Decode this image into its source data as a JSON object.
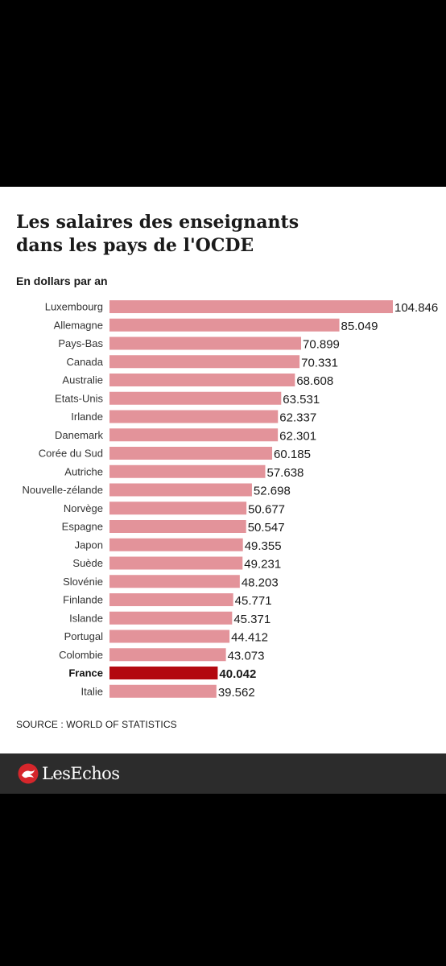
{
  "header": {
    "title_line1": "Les salaires des enseignants",
    "title_line2": "dans les pays de l'OCDE",
    "subtitle": "En dollars par an"
  },
  "footer": {
    "source": "SOURCE : WORLD OF STATISTICS",
    "brand": "LesEchos"
  },
  "colors": {
    "bar": "#e3939a",
    "bar_highlight": "#b3080f",
    "page_background": "#000000",
    "card_background": "#ffffff",
    "brand_bar": "#2c2c2c",
    "brand_logo": "#d6262b"
  },
  "icons": {
    "brand_logo": "les-echos-logo-icon"
  },
  "chart_data": {
    "type": "bar",
    "orientation": "horizontal",
    "title": "Les salaires des enseignants dans les pays de l'OCDE",
    "subtitle": "En dollars par an",
    "highlight": "France",
    "grid": false,
    "legend": "none",
    "xlim": [
      0,
      104846
    ],
    "categories": [
      "Luxembourg",
      "Allemagne",
      "Pays-Bas",
      "Canada",
      "Australie",
      "Etats-Unis",
      "Irlande",
      "Danemark",
      "Corée du Sud",
      "Autriche",
      "Nouvelle-zélande",
      "Norvège",
      "Espagne",
      "Japon",
      "Suède",
      "Slovénie",
      "Finlande",
      "Islande",
      "Portugal",
      "Colombie",
      "France",
      "Italie"
    ],
    "values": [
      104846,
      85049,
      70899,
      70331,
      68608,
      63531,
      62337,
      62301,
      60185,
      57638,
      52698,
      50677,
      50547,
      49355,
      49231,
      48203,
      45771,
      45371,
      44412,
      43073,
      40042,
      39562
    ],
    "value_labels": [
      "104.846",
      "85.049",
      "70.899",
      "70.331",
      "68.608",
      "63.531",
      "62.337",
      "62.301",
      "60.185",
      "57.638",
      "52.698",
      "50.677",
      "50.547",
      "49.355",
      "49.231",
      "48.203",
      "45.771",
      "45.371",
      "44.412",
      "43.073",
      "40.042",
      "39.562"
    ]
  }
}
